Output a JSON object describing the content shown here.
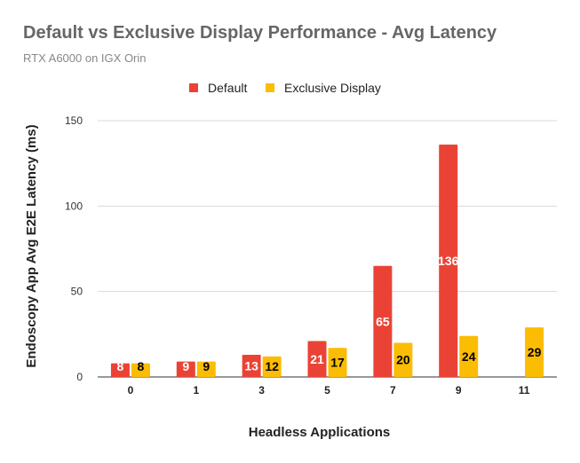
{
  "chart_data": {
    "type": "bar",
    "title": "Default vs Exclusive Display Performance - Avg Latency",
    "subtitle": "RTX A6000 on IGX Orin",
    "xlabel": "Headless Applications",
    "ylabel": "Endoscopy App Avg E2E Latency (ms)",
    "categories": [
      "0",
      "1",
      "3",
      "5",
      "7",
      "9",
      "11"
    ],
    "series": [
      {
        "name": "Default",
        "color": "#EA4335",
        "label_color": "#ffffff",
        "values": [
          8,
          9,
          13,
          21,
          65,
          136,
          null
        ]
      },
      {
        "name": "Exclusive Display",
        "color": "#FBBC04",
        "label_color": "#000000",
        "values": [
          8,
          9,
          12,
          17,
          20,
          24,
          29
        ]
      }
    ],
    "ylim": [
      0,
      150
    ],
    "yticks": [
      0,
      50,
      100,
      150
    ],
    "grid": true,
    "legend": "top-center"
  }
}
